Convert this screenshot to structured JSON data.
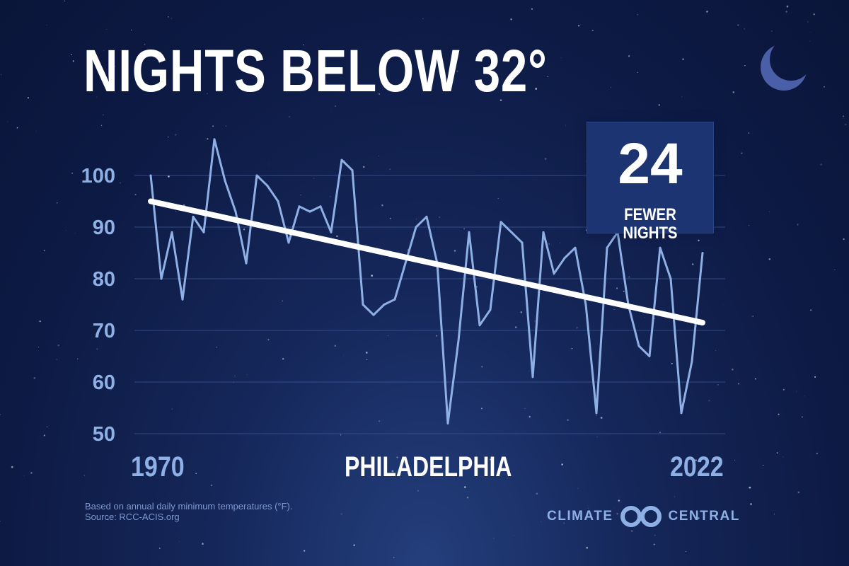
{
  "title": "NIGHTS BELOW 32°",
  "callout": {
    "number": "24",
    "label": "FEWER NIGHTS"
  },
  "location": "PHILADELPHIA",
  "x_start_label": "1970",
  "x_end_label": "2022",
  "footnote": {
    "line1": "Based on annual daily minimum temperatures (°F).",
    "line2": "Source: RCC-ACIS.org"
  },
  "brand": {
    "left": "CLIMATE",
    "right": "CENTRAL"
  },
  "colors": {
    "background": "#0f1d4a",
    "data_line": "#8fb0e4",
    "trend_line": "#ffffff",
    "grid": "#3c5694",
    "callout_bg": "#1c3472",
    "text": "#ffffff"
  },
  "icons": {
    "moon": "crescent-moon-icon",
    "logo": "interlocking-rings-logo"
  },
  "chart_data": {
    "type": "line",
    "title": "NIGHTS BELOW 32°",
    "xlabel": "",
    "ylabel": "",
    "x": [
      1970,
      1971,
      1972,
      1973,
      1974,
      1975,
      1976,
      1977,
      1978,
      1979,
      1980,
      1981,
      1982,
      1983,
      1984,
      1985,
      1986,
      1987,
      1988,
      1989,
      1990,
      1991,
      1992,
      1993,
      1994,
      1995,
      1996,
      1997,
      1998,
      1999,
      2000,
      2001,
      2002,
      2003,
      2004,
      2005,
      2006,
      2007,
      2008,
      2009,
      2010,
      2011,
      2012,
      2013,
      2014,
      2015,
      2016,
      2017,
      2018,
      2019,
      2020,
      2021,
      2022
    ],
    "xlim": [
      1970,
      2022
    ],
    "ylim": [
      50,
      100
    ],
    "y_ticks": [
      100,
      90,
      80,
      70,
      60,
      50
    ],
    "grid": true,
    "series": [
      {
        "values": [
          100,
          80,
          89,
          76,
          92,
          89,
          107,
          99,
          93,
          83,
          100,
          98,
          95,
          87,
          94,
          93,
          94,
          89,
          103,
          101,
          75,
          73,
          75,
          76,
          83,
          90,
          92,
          83,
          52,
          68,
          89,
          71,
          74,
          91,
          89,
          87,
          61,
          89,
          81,
          84,
          86,
          75,
          54,
          86,
          89,
          75,
          67,
          65,
          86,
          80,
          54,
          64,
          85
        ]
      }
    ],
    "trend": {
      "start": [
        1970,
        95
      ],
      "end": [
        2022,
        71.5
      ]
    }
  }
}
